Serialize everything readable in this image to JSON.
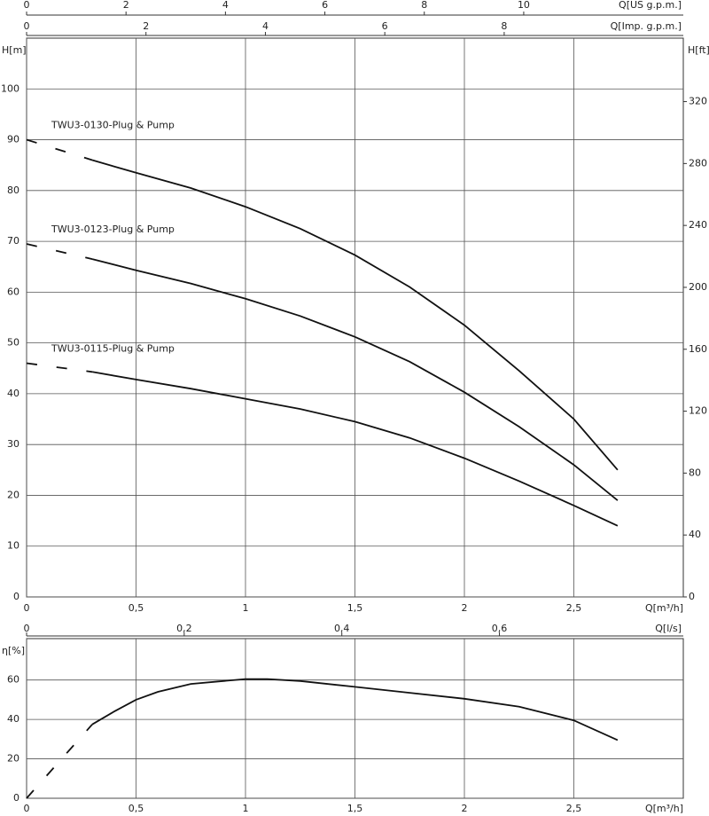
{
  "chart_data": [
    {
      "type": "line",
      "ylabel": "H[m]",
      "y2label": "H[ft]",
      "xlabel": "Q[m³/h]",
      "x2label": "Q[US g.p.m.]",
      "x3label": "Q[Imp. g.p.m.]",
      "xlim": [
        0,
        3
      ],
      "xticks": [
        0,
        {
          "value": 0.5,
          "label": "0,5"
        },
        1,
        {
          "value": 1.5,
          "label": "1,5"
        },
        2,
        {
          "value": 2.5,
          "label": "2,5"
        }
      ],
      "x2lim": [
        0,
        13.21
      ],
      "x2ticks": [
        0,
        2,
        4,
        6,
        8,
        10
      ],
      "x3lim": [
        0,
        11
      ],
      "x3ticks": [
        0,
        2,
        4,
        6,
        8
      ],
      "ylim": [
        0,
        110
      ],
      "yticks": [
        0,
        10,
        20,
        30,
        40,
        50,
        60,
        70,
        80,
        90,
        100
      ],
      "y2lim": [
        0,
        361
      ],
      "y2ticks": [
        0,
        40,
        80,
        120,
        160,
        200,
        240,
        280,
        320
      ],
      "grid": true,
      "dash_first": true,
      "series": [
        {
          "name": "TWU3-0130-Plug & Pump",
          "color": "#111111",
          "x": [
            0,
            0.3,
            0.5,
            0.75,
            1,
            1.25,
            1.5,
            1.75,
            2,
            2.25,
            2.5,
            2.7
          ],
          "values": [
            90,
            86,
            83.5,
            80.5,
            76.8,
            72.5,
            67.3,
            61,
            53.5,
            44.5,
            35,
            25
          ]
        },
        {
          "name": "TWU3-0123-Plug & Pump",
          "color": "#111111",
          "x": [
            0,
            0.3,
            0.5,
            0.75,
            1,
            1.25,
            1.5,
            1.75,
            2,
            2.25,
            2.5,
            2.7
          ],
          "values": [
            69.5,
            66.5,
            64.3,
            61.7,
            58.7,
            55.3,
            51.2,
            46.3,
            40.3,
            33.5,
            26,
            19
          ]
        },
        {
          "name": "TWU3-0115-Plug & Pump",
          "color": "#111111",
          "x": [
            0,
            0.3,
            0.5,
            0.75,
            1,
            1.25,
            1.5,
            1.75,
            2,
            2.25,
            2.5,
            2.7
          ],
          "values": [
            46,
            44.3,
            42.8,
            41,
            39,
            37,
            34.5,
            31.3,
            27.3,
            22.8,
            18,
            14
          ]
        }
      ]
    },
    {
      "type": "line",
      "ylabel": "η[%]",
      "xlabel": "Q[m³/h]",
      "x2label": "Q[l/s]",
      "xlim": [
        0,
        3
      ],
      "xticks": [
        0,
        {
          "value": 0.5,
          "label": "0,5"
        },
        1,
        {
          "value": 1.5,
          "label": "1,5"
        },
        2,
        {
          "value": 2.5,
          "label": "2,5"
        }
      ],
      "x2lim": [
        0,
        0.8333
      ],
      "x2ticks": [
        0,
        {
          "value": 0.2,
          "label": "0,2"
        },
        {
          "value": 0.4,
          "label": "0,4"
        },
        {
          "value": 0.6,
          "label": "0,6"
        }
      ],
      "ylim": [
        0,
        81
      ],
      "yticks": [
        0,
        20,
        40,
        60
      ],
      "grid": true,
      "dash_first": true,
      "series": [
        {
          "color": "#111111",
          "x": [
            0,
            0.3,
            0.4,
            0.5,
            0.6,
            0.75,
            1,
            1.1,
            1.25,
            1.5,
            1.75,
            2,
            2.25,
            2.5,
            2.7
          ],
          "values": [
            0,
            37.5,
            44,
            50,
            54,
            58,
            60.5,
            60.5,
            59.5,
            56.5,
            53.5,
            50.5,
            46.5,
            39.5,
            29.5
          ]
        }
      ]
    }
  ]
}
